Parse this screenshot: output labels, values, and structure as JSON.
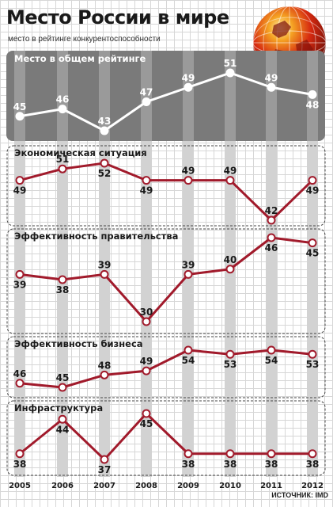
{
  "title": "Место России в мире",
  "subtitle": "место в рейтинге конкурентоспособности",
  "source": "ИСТОЧНИК: IMD",
  "colors": {
    "overall_band": "#7a7a7a",
    "overall_line": "#ffffff",
    "series_line": "#a11a2b",
    "year_column": "#d2d2d2"
  },
  "chart_data": {
    "type": "line",
    "x": [
      "2005",
      "2006",
      "2007",
      "2008",
      "2009",
      "2010",
      "2011",
      "2012"
    ],
    "series": [
      {
        "name": "Место в общем рейтинге",
        "values": [
          45,
          46,
          43,
          47,
          49,
          51,
          49,
          48
        ]
      },
      {
        "name": "Экономическая ситуация",
        "values": [
          49,
          51,
          52,
          49,
          49,
          49,
          42,
          49
        ]
      },
      {
        "name": "Эффективность правительства",
        "values": [
          39,
          38,
          39,
          30,
          39,
          40,
          46,
          45
        ]
      },
      {
        "name": "Эффективность бизнеса",
        "values": [
          46,
          45,
          48,
          49,
          54,
          53,
          54,
          53
        ]
      },
      {
        "name": "Инфраструктура",
        "values": [
          38,
          44,
          37,
          45,
          38,
          38,
          38,
          38
        ]
      }
    ],
    "grid": true,
    "legend": "none"
  }
}
